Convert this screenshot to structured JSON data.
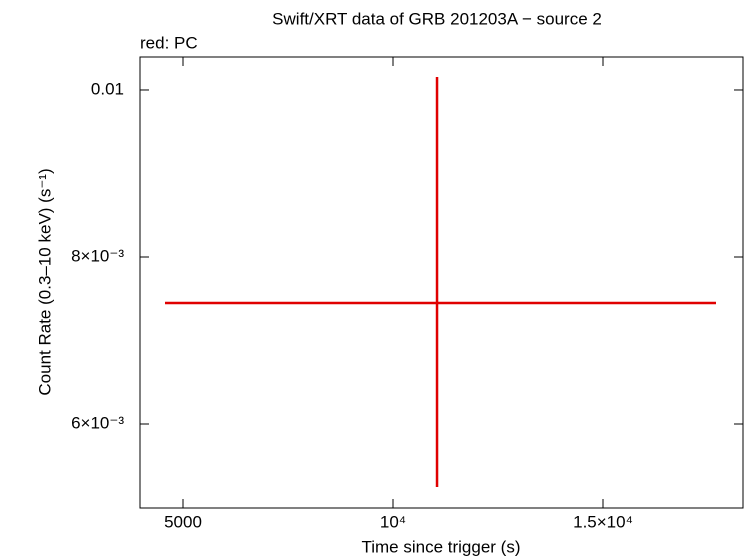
{
  "chart_data": {
    "type": "scatter",
    "title": "Swift/XRT data of GRB 201203A − source 2",
    "annotation": "red: PC",
    "x_label": "Time since trigger (s)",
    "y_label": "Count Rate (0.3–10 keV) (s⁻¹)",
    "xlim": [
      3976,
      18333
    ],
    "ylim": [
      0.004994,
      0.010395
    ],
    "xticks": [
      5000,
      {
        "value": 10000,
        "label": "10⁴"
      },
      {
        "value": 15000,
        "label": "1.5×10⁴"
      }
    ],
    "yticks": [
      {
        "value": 0.006,
        "label": "6×10⁻³"
      },
      {
        "value": 0.008,
        "label": "8×10⁻³"
      },
      0.01
    ],
    "series": [
      {
        "color": "#e00000",
        "x": [
          11048
        ],
        "values": [
          0.007449
        ],
        "xerr_minus": [
          6477
        ],
        "xerr_plus": [
          6642
        ],
        "yerr_minus": [
          0.002203
        ],
        "yerr_plus": [
          0.002707
        ]
      }
    ]
  }
}
